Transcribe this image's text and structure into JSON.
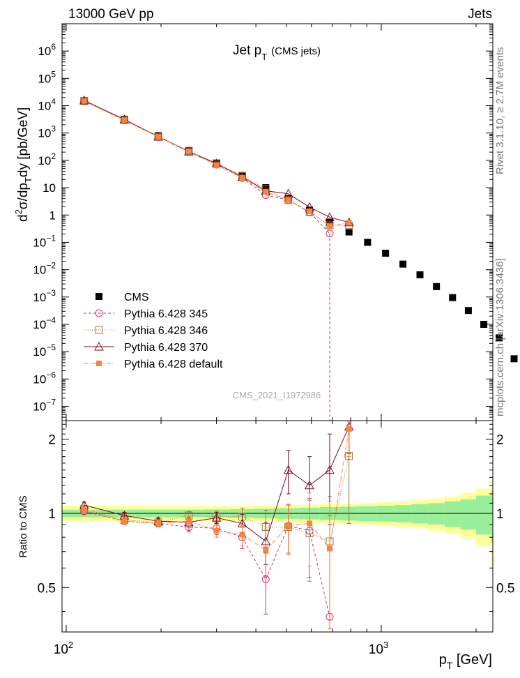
{
  "header": {
    "left": "13000 GeV pp",
    "right": "Jets",
    "side_top": "Rivet 3.1.10, ≥ 2.7M events",
    "side_bottom": "mcplots.cern.ch [arXiv:1306.3436]",
    "watermark": "CMS_2021_I1972986"
  },
  "chart_data": [
    {
      "type": "scatter",
      "title": "Jet p",
      "title_sub": "T",
      "title_note": "(CMS jets)",
      "ylabel": "d²σ/dp_T dy [pb/GeV]",
      "yscale": "log",
      "xscale": "log",
      "xlim": [
        97,
        2260
      ],
      "ylim": [
        3e-08,
        10000000.0
      ],
      "y_ticks": [
        {
          "v": 1e-07,
          "base": "10",
          "exp": "−7"
        },
        {
          "v": 1e-06,
          "base": "10",
          "exp": "−6"
        },
        {
          "v": 1e-05,
          "base": "10",
          "exp": "−5"
        },
        {
          "v": 0.0001,
          "base": "10",
          "exp": "−4"
        },
        {
          "v": 0.001,
          "base": "10",
          "exp": "−3"
        },
        {
          "v": 0.01,
          "base": "10",
          "exp": "−2"
        },
        {
          "v": 0.1,
          "base": "10",
          "exp": "−1"
        },
        {
          "v": 1,
          "base": "1",
          "exp": ""
        },
        {
          "v": 10,
          "base": "10",
          "exp": ""
        },
        {
          "v": 100,
          "base": "10",
          "exp": "2"
        },
        {
          "v": 1000,
          "base": "10",
          "exp": "3"
        },
        {
          "v": 10000,
          "base": "10",
          "exp": "4"
        },
        {
          "v": 100000,
          "base": "10",
          "exp": "5"
        },
        {
          "v": 1000000,
          "base": "10",
          "exp": "6"
        }
      ],
      "legend": [
        {
          "name": "CMS",
          "marker": "square-filled",
          "color": "#000000"
        },
        {
          "name": "Pythia 6.428 345",
          "marker": "circle-open",
          "color": "#cc3366"
        },
        {
          "name": "Pythia 6.428 346",
          "marker": "square-open",
          "color": "#a07a3c"
        },
        {
          "name": "Pythia 6.428 370",
          "marker": "triangle-open",
          "color": "#7a0a1e"
        },
        {
          "name": "Pythia 6.428 default",
          "marker": "square-small-filled",
          "color": "#f5853f"
        }
      ],
      "x": [
        114,
        153,
        196,
        245,
        300,
        362,
        430,
        507,
        592,
        686,
        790,
        905,
        1032,
        1172,
        1327,
        1497,
        1684,
        1890,
        2116,
        2366,
        2640
      ],
      "series": [
        {
          "name": "CMS",
          "values": [
            14500,
            3200,
            800,
            230,
            80,
            28,
            10,
            4.0,
            1.5,
            0.55,
            0.24,
            0.1,
            0.04,
            0.016,
            0.0065,
            0.0024,
            0.00095,
            0.00032,
            0.0001,
            3.2e-05,
            5.5e-06
          ]
        },
        {
          "name": "Pythia 6.428 345",
          "values": [
            14800,
            2950,
            720,
            205,
            70,
            22.5,
            5.4,
            3.55,
            1.28,
            0.21
          ]
        },
        {
          "name": "Pythia 6.428 346",
          "values": [
            15100,
            3000,
            730,
            225,
            77,
            27,
            8.8,
            3.5,
            1.25,
            0.42,
            0.41
          ]
        },
        {
          "name": "Pythia 6.428 370",
          "values": [
            15600,
            3150,
            740,
            210,
            77,
            25,
            7.7,
            6.0,
            1.95,
            0.83,
            0.54
          ]
        },
        {
          "name": "Pythia 6.428 default",
          "values": [
            14900,
            2980,
            730,
            215,
            68,
            23,
            7.1,
            3.55,
            1.36,
            0.4,
            0.52
          ]
        }
      ]
    },
    {
      "type": "line",
      "ylabel": "Ratio to CMS",
      "xlabel": "p_T [GeV]",
      "xscale": "log",
      "ylim": [
        0.33,
        2.38
      ],
      "y_ticks": [
        "0.5",
        "1",
        "2"
      ],
      "x_ticks": [
        {
          "v": 100,
          "base": "10",
          "exp": "2"
        },
        {
          "v": 1000,
          "base": "10",
          "exp": "3"
        }
      ],
      "bands": {
        "edges": [
          97,
          133,
          174,
          220,
          271,
          330,
          395,
          467,
          549,
          638,
          737,
          846,
          967,
          1101,
          1248,
          1410,
          1588,
          1784,
          2000,
          2238,
          2500,
          2780
        ],
        "inner": [
          0.035,
          0.035,
          0.035,
          0.035,
          0.037,
          0.04,
          0.045,
          0.05,
          0.055,
          0.06,
          0.065,
          0.07,
          0.075,
          0.08,
          0.09,
          0.1,
          0.12,
          0.14,
          0.18,
          0.24,
          0.34
        ],
        "outer": [
          0.075,
          0.073,
          0.071,
          0.07,
          0.07,
          0.072,
          0.075,
          0.08,
          0.085,
          0.09,
          0.095,
          0.1,
          0.11,
          0.12,
          0.13,
          0.15,
          0.17,
          0.21,
          0.26,
          0.37,
          0.85
        ],
        "inner_color": "#99ee99",
        "outer_color": "#ffff99"
      },
      "series": [
        {
          "name": "Pythia 6.428 345",
          "values": [
            1.02,
            0.93,
            0.91,
            0.88,
            0.87,
            0.8,
            0.54,
            0.89,
            0.85,
            0.38
          ],
          "errors": [
            0.03,
            0.03,
            0.03,
            0.04,
            0.05,
            0.08,
            0.15,
            0.2,
            0.3,
            0.6
          ]
        },
        {
          "name": "Pythia 6.428 346",
          "values": [
            1.04,
            0.94,
            0.92,
            0.98,
            0.97,
            0.97,
            0.88,
            0.88,
            0.83,
            0.77,
            1.71
          ],
          "errors": [
            0.03,
            0.03,
            0.03,
            0.04,
            0.05,
            0.08,
            0.15,
            0.2,
            0.3,
            0.4,
            0.8
          ]
        },
        {
          "name": "Pythia 6.428 370",
          "values": [
            1.08,
            0.98,
            0.93,
            0.92,
            0.96,
            0.91,
            0.77,
            1.5,
            1.3,
            1.5,
            2.25
          ],
          "errors": [
            0.03,
            0.03,
            0.03,
            0.04,
            0.05,
            0.08,
            0.15,
            0.3,
            0.4,
            0.6,
            0.5
          ]
        },
        {
          "name": "Pythia 6.428 default",
          "values": [
            1.03,
            0.93,
            0.91,
            0.93,
            0.85,
            0.82,
            0.71,
            0.89,
            0.91,
            0.72,
            2.2
          ],
          "errors": [
            0.03,
            0.03,
            0.03,
            0.04,
            0.05,
            0.08,
            0.15,
            0.2,
            0.3,
            0.4,
            0.5
          ]
        }
      ]
    }
  ]
}
